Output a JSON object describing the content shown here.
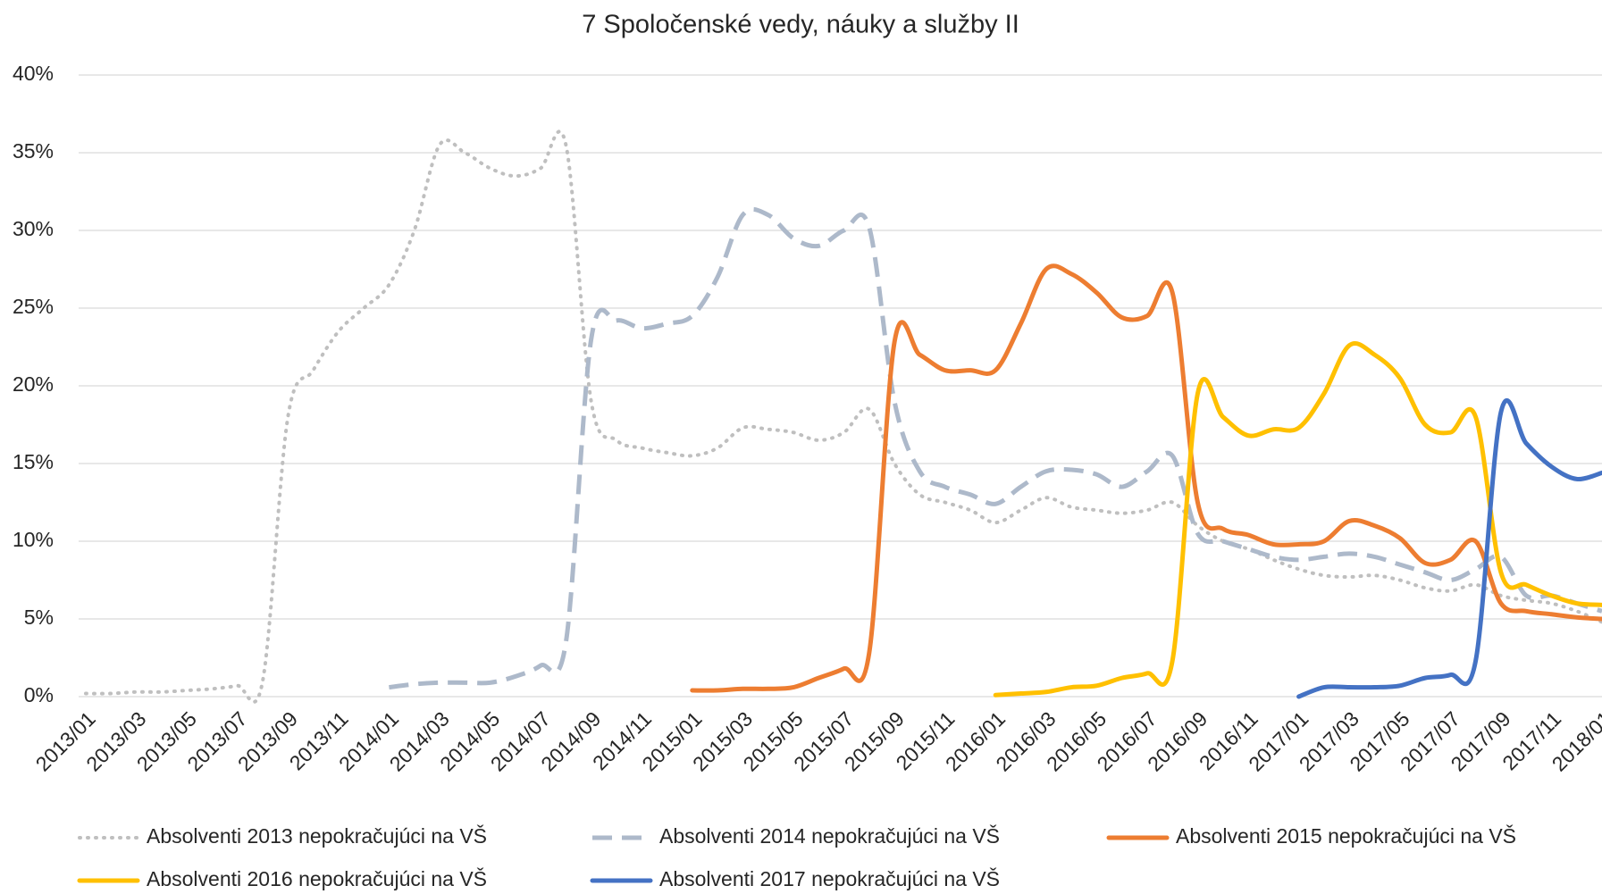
{
  "chart_data": {
    "type": "line",
    "title": "7 Spoločenské  vedy, náuky a služby II",
    "categories": [
      "2013/01",
      null,
      "2013/03",
      null,
      "2013/05",
      null,
      "2013/07",
      null,
      "2013/09",
      null,
      "2013/11",
      null,
      "2014/01",
      null,
      "2014/03",
      null,
      "2014/05",
      null,
      "2014/07",
      null,
      "2014/09",
      null,
      "2014/11",
      null,
      "2015/01",
      null,
      "2015/03",
      null,
      "2015/05",
      null,
      "2015/07",
      null,
      "2015/09",
      null,
      "2015/11",
      null,
      "2016/01",
      null,
      "2016/03",
      null,
      "2016/05",
      null,
      "2016/07",
      null,
      "2016/09",
      null,
      "2016/11",
      null,
      "2017/01",
      null,
      "2017/03",
      null,
      "2017/05",
      null,
      "2017/07",
      null,
      "2017/09",
      null,
      "2017/11",
      null,
      "2018/01"
    ],
    "series": [
      {
        "name": "Absolventi 2013 nepokračujúci na VŠ",
        "color": "#bfbfbf",
        "dash": "dotted",
        "values": [
          0.2,
          0.2,
          0.3,
          0.3,
          0.4,
          0.5,
          0.7,
          1.0,
          18,
          21,
          23.5,
          25,
          26.5,
          30,
          35.5,
          35,
          34,
          33.5,
          34,
          35.5,
          19,
          16.5,
          16,
          15.7,
          15.5,
          16,
          17.3,
          17.2,
          17,
          16.5,
          17,
          18.5,
          15,
          13,
          12.5,
          12,
          11.2,
          12,
          12.8,
          12.2,
          12,
          11.8,
          12,
          12.5,
          11,
          10,
          9.5,
          8.8,
          8.2,
          7.8,
          7.7,
          7.8,
          7.5,
          7,
          6.8,
          7.2,
          6.5,
          6.2,
          6,
          5.5,
          4.8
        ]
      },
      {
        "name": "Absolventi 2014 nepokračujúci na VŠ",
        "color": "#adb9ca",
        "dash": "dashed",
        "values": [
          null,
          null,
          null,
          null,
          null,
          null,
          null,
          null,
          null,
          null,
          null,
          null,
          0.6,
          0.8,
          0.9,
          0.9,
          0.9,
          1.3,
          2,
          3.5,
          23,
          24.2,
          23.7,
          24,
          24.5,
          27,
          31,
          31,
          29.5,
          29,
          30,
          30.2,
          19,
          14.5,
          13.5,
          13,
          12.4,
          13.5,
          14.5,
          14.6,
          14.3,
          13.5,
          14.5,
          15.5,
          10.5,
          10,
          9.5,
          9,
          8.8,
          9,
          9.2,
          9,
          8.5,
          8,
          7.5,
          8.2,
          9,
          6.5,
          6.5,
          6,
          5.5
        ]
      },
      {
        "name": "Absolventi 2015 nepokračujúci na VŠ",
        "color": "#ed7d31",
        "dash": "solid",
        "values": [
          null,
          null,
          null,
          null,
          null,
          null,
          null,
          null,
          null,
          null,
          null,
          null,
          null,
          null,
          null,
          null,
          null,
          null,
          null,
          null,
          null,
          null,
          null,
          null,
          0.4,
          0.4,
          0.5,
          0.5,
          0.6,
          1.2,
          1.8,
          2.8,
          22.8,
          22,
          21,
          21,
          21,
          24,
          27.5,
          27.2,
          26,
          24.4,
          24.5,
          26,
          12.5,
          10.8,
          10.4,
          9.8,
          9.8,
          10,
          11.3,
          11,
          10.2,
          8.6,
          8.8,
          10,
          6,
          5.5,
          5.3,
          5.1,
          5
        ]
      },
      {
        "name": "Absolventi 2016 nepokračujúci na VŠ",
        "color": "#ffc000",
        "dash": "solid",
        "values": [
          null,
          null,
          null,
          null,
          null,
          null,
          null,
          null,
          null,
          null,
          null,
          null,
          null,
          null,
          null,
          null,
          null,
          null,
          null,
          null,
          null,
          null,
          null,
          null,
          null,
          null,
          null,
          null,
          null,
          null,
          null,
          null,
          null,
          null,
          null,
          null,
          0.1,
          0.2,
          0.3,
          0.6,
          0.7,
          1.2,
          1.5,
          2.3,
          19.5,
          18,
          16.8,
          17.2,
          17.3,
          19.5,
          22.6,
          22,
          20.5,
          17.5,
          17,
          18,
          8,
          7.2,
          6.5,
          6,
          5.9
        ]
      },
      {
        "name": "Absolventi 2017 nepokračujúci na VŠ",
        "color": "#4472c4",
        "dash": "solid",
        "values": [
          null,
          null,
          null,
          null,
          null,
          null,
          null,
          null,
          null,
          null,
          null,
          null,
          null,
          null,
          null,
          null,
          null,
          null,
          null,
          null,
          null,
          null,
          null,
          null,
          null,
          null,
          null,
          null,
          null,
          null,
          null,
          null,
          null,
          null,
          null,
          null,
          null,
          null,
          null,
          null,
          null,
          null,
          null,
          null,
          null,
          null,
          null,
          null,
          0,
          0.6,
          0.6,
          0.6,
          0.7,
          1.2,
          1.4,
          2.3,
          18.3,
          16.3,
          14.8,
          14,
          14.4
        ]
      }
    ],
    "ylim": [
      0,
      40
    ],
    "yticks": [
      {
        "value": 0,
        "label": "0%"
      },
      {
        "value": 5,
        "label": "5%"
      },
      {
        "value": 10,
        "label": "10%"
      },
      {
        "value": 15,
        "label": "15%"
      },
      {
        "value": 20,
        "label": "20%"
      },
      {
        "value": 25,
        "label": "25%"
      },
      {
        "value": 30,
        "label": "30%"
      },
      {
        "value": 35,
        "label": "35%"
      },
      {
        "value": 40,
        "label": "40%"
      }
    ],
    "grid": true,
    "legend": "bottom"
  }
}
